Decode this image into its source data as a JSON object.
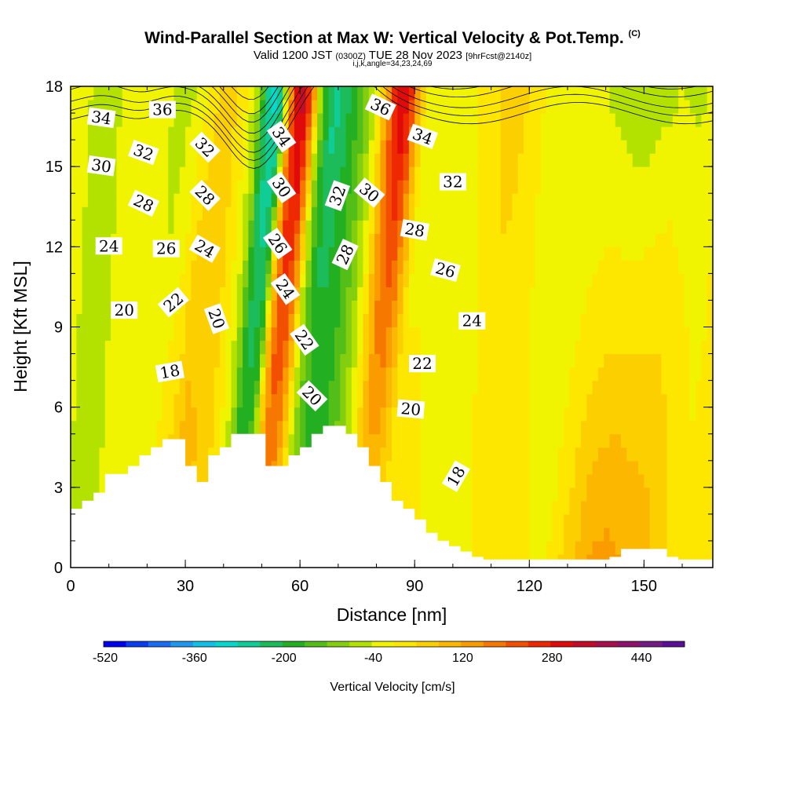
{
  "header": {
    "title": "Wind-Parallel Section at Max W: Vertical Velocity & Pot.Temp.",
    "copyright": "(C)",
    "valid_prefix": "Valid 1200 JST",
    "valid_z": "(0300Z)",
    "valid_date": "TUE 28 Nov 2023",
    "forecast": "[9hrFcst@2140z]",
    "params": "i,j,k,angle=34,23,24,69"
  },
  "chart_data": {
    "type": "heatmap",
    "xlabel": "Distance [nm]",
    "ylabel": "Height [Kft MSL]",
    "xlim": [
      0,
      168
    ],
    "ylim": [
      0,
      18
    ],
    "xticks": [
      0,
      30,
      60,
      90,
      120,
      150
    ],
    "yticks": [
      0,
      3,
      6,
      9,
      12,
      15,
      18
    ],
    "colorbar": {
      "label": "Vertical Velocity [cm/s]",
      "range": [
        -520,
        520
      ],
      "step": 40,
      "tick_values": [
        -520,
        -360,
        -200,
        -40,
        120,
        280,
        440
      ],
      "tick_labels": [
        "-520",
        "-360",
        "-200",
        "-40",
        "120",
        "280",
        "440"
      ],
      "colors": [
        "#0000ee",
        "#0a3cf0",
        "#1a6cf2",
        "#1e98ee",
        "#10c0e6",
        "#06d8cc",
        "#10cc96",
        "#1cbc5a",
        "#22b022",
        "#54be18",
        "#84ce10",
        "#b4e200",
        "#f0f400",
        "#fde600",
        "#fcd000",
        "#fcb800",
        "#fa9c00",
        "#f67800",
        "#f25000",
        "#ee2800",
        "#e00a0a",
        "#c40c2a",
        "#a8104c",
        "#8c126a",
        "#741a86",
        "#5a0f96"
      ]
    },
    "velocity_field": {
      "x_nm": [
        0,
        4,
        8,
        12,
        16,
        20,
        24,
        28,
        32,
        36,
        40,
        44,
        46,
        48,
        50,
        52,
        54,
        56,
        58,
        60,
        62,
        64,
        66,
        68,
        70,
        72,
        74,
        76,
        78,
        80,
        82,
        84,
        86,
        88,
        92,
        96,
        100,
        105,
        110,
        115,
        120,
        125,
        130,
        135,
        140,
        145,
        150,
        155,
        160,
        164,
        168
      ],
      "w_upper_cm_s": [
        -40,
        -60,
        -40,
        -20,
        -10,
        -30,
        -60,
        -40,
        20,
        60,
        20,
        -80,
        -240,
        -300,
        -260,
        100,
        300,
        340,
        200,
        -60,
        -200,
        -260,
        -240,
        -200,
        -160,
        -120,
        -60,
        20,
        160,
        280,
        320,
        260,
        120,
        0,
        -30,
        -40,
        -10,
        20,
        60,
        40,
        -10,
        -30,
        -40,
        -40,
        -60,
        -80,
        -60,
        -40,
        -50,
        -30,
        20
      ],
      "w_lower_cm_s": [
        -20,
        -40,
        -60,
        -40,
        -40,
        -20,
        0,
        60,
        120,
        80,
        40,
        -40,
        -120,
        -140,
        -100,
        40,
        140,
        120,
        60,
        -20,
        -80,
        -120,
        -140,
        -160,
        -150,
        -120,
        -80,
        -40,
        0,
        40,
        60,
        40,
        20,
        0,
        30,
        0,
        -20,
        -40,
        0,
        20,
        10,
        0,
        0,
        60,
        120,
        140,
        120,
        100,
        60,
        10,
        0
      ]
    },
    "terrain": {
      "x_nm": [
        0,
        3,
        6,
        9,
        12,
        15,
        18,
        21,
        24,
        27,
        30,
        33,
        36,
        39,
        42,
        45,
        48,
        51,
        54,
        57,
        60,
        63,
        66,
        69,
        72,
        75,
        78,
        81,
        84,
        87,
        90,
        93,
        96,
        99,
        102,
        105,
        108,
        111,
        114,
        117,
        120,
        123,
        126,
        129,
        132,
        135,
        138,
        141,
        144,
        147,
        150,
        153,
        156,
        159,
        162,
        165,
        168
      ],
      "height_kft": [
        2.2,
        2.5,
        2.8,
        3.5,
        3.5,
        3.8,
        4.2,
        4.5,
        4.8,
        4.8,
        3.8,
        3.2,
        4.2,
        4.5,
        5.0,
        5.0,
        5.0,
        3.8,
        3.8,
        4.2,
        4.5,
        5.0,
        5.3,
        5.3,
        5.0,
        4.5,
        3.8,
        3.2,
        2.5,
        2.2,
        1.8,
        1.3,
        1.0,
        0.8,
        0.6,
        0.4,
        0.3,
        0.3,
        0.3,
        0.3,
        0.3,
        0.3,
        0.3,
        0.3,
        0.3,
        0.3,
        0.3,
        0.4,
        0.7,
        0.7,
        0.7,
        0.7,
        0.4,
        0.3,
        0.3,
        0.3,
        0.3
      ]
    },
    "theta_contours": {
      "base_levels": [
        17,
        17.3,
        17.6,
        18,
        18.3,
        18.7,
        19,
        19.5,
        20,
        20.5,
        21,
        21.5,
        22,
        22.5,
        23,
        23.5,
        24,
        24.5,
        25,
        25.5,
        26,
        26.5,
        27,
        27.5,
        28,
        28.5,
        29,
        29.5,
        30,
        30.5,
        31,
        31.5,
        32,
        32.5,
        33,
        33.5,
        34,
        34.5,
        35,
        35.5,
        36,
        36.5
      ],
      "labels": [
        {
          "text": "34",
          "x": 8,
          "y": 16.8,
          "rot": 8
        },
        {
          "text": "36",
          "x": 24,
          "y": 17.1,
          "rot": 0
        },
        {
          "text": "32",
          "x": 19,
          "y": 15.5,
          "rot": 20
        },
        {
          "text": "30",
          "x": 8,
          "y": 15.0,
          "rot": 8
        },
        {
          "text": "32",
          "x": 35,
          "y": 15.7,
          "rot": 45
        },
        {
          "text": "34",
          "x": 55,
          "y": 16.1,
          "rot": 55
        },
        {
          "text": "36",
          "x": 81,
          "y": 17.2,
          "rot": 25
        },
        {
          "text": "34",
          "x": 92,
          "y": 16.1,
          "rot": 20
        },
        {
          "text": "28",
          "x": 19,
          "y": 13.6,
          "rot": 25
        },
        {
          "text": "28",
          "x": 35,
          "y": 13.9,
          "rot": 45
        },
        {
          "text": "30",
          "x": 55,
          "y": 14.2,
          "rot": 55
        },
        {
          "text": "32",
          "x": 70,
          "y": 13.9,
          "rot": -70
        },
        {
          "text": "30",
          "x": 78,
          "y": 14.0,
          "rot": 40
        },
        {
          "text": "32",
          "x": 100,
          "y": 14.4,
          "rot": 0
        },
        {
          "text": "24",
          "x": 10,
          "y": 12.0,
          "rot": 0
        },
        {
          "text": "26",
          "x": 25,
          "y": 11.9,
          "rot": 0
        },
        {
          "text": "24",
          "x": 35,
          "y": 11.9,
          "rot": 30
        },
        {
          "text": "26",
          "x": 54,
          "y": 12.1,
          "rot": 55
        },
        {
          "text": "28",
          "x": 72,
          "y": 11.7,
          "rot": -65
        },
        {
          "text": "28",
          "x": 90,
          "y": 12.6,
          "rot": 10
        },
        {
          "text": "26",
          "x": 98,
          "y": 11.1,
          "rot": 15
        },
        {
          "text": "20",
          "x": 14,
          "y": 9.6,
          "rot": 0
        },
        {
          "text": "22",
          "x": 27,
          "y": 9.9,
          "rot": -40
        },
        {
          "text": "20",
          "x": 38,
          "y": 9.3,
          "rot": 70
        },
        {
          "text": "24",
          "x": 56,
          "y": 10.4,
          "rot": 55
        },
        {
          "text": "24",
          "x": 105,
          "y": 9.2,
          "rot": 0
        },
        {
          "text": "22",
          "x": 61,
          "y": 8.5,
          "rot": 55
        },
        {
          "text": "22",
          "x": 92,
          "y": 7.6,
          "rot": 0
        },
        {
          "text": "18",
          "x": 26,
          "y": 7.3,
          "rot": -10
        },
        {
          "text": "20",
          "x": 63,
          "y": 6.4,
          "rot": 45
        },
        {
          "text": "20",
          "x": 89,
          "y": 5.9,
          "rot": 5
        },
        {
          "text": "18",
          "x": 101,
          "y": 3.4,
          "rot": -60
        }
      ]
    }
  }
}
